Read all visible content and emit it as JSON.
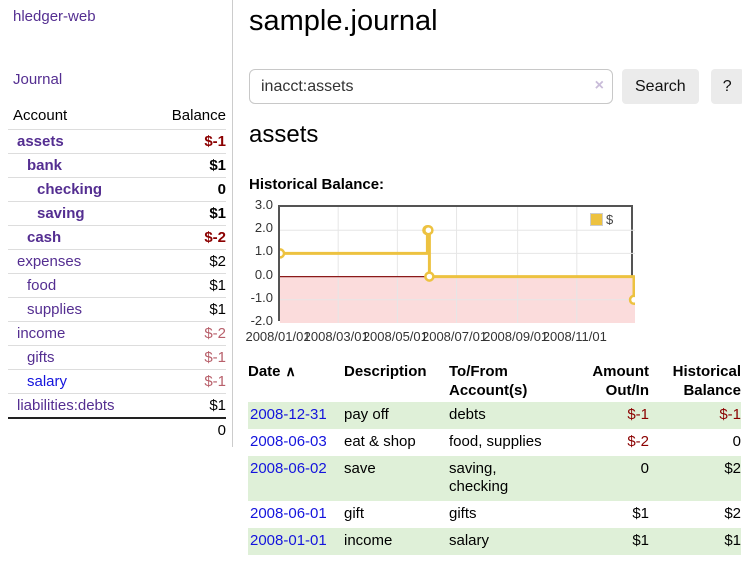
{
  "colors": {
    "link_purple": "#542e91",
    "link_blue": "#1414dd",
    "negative_strong": "#8b0000",
    "negative_soft": "#b8606b",
    "row_highlight_green": "#dff0d8",
    "chart_series_gold": "#edc240",
    "chart_negative_region_pink": "#fbdcdc",
    "chart_zero_line_red": "#8b1a1a"
  },
  "sidebar": {
    "app_title": "hledger-web",
    "journal_link": "Journal",
    "accounts_table": {
      "headers": [
        "Account",
        "Balance"
      ],
      "rows": [
        {
          "account": "assets",
          "indent": 1,
          "bold": true,
          "balance": "$-1",
          "negative": true,
          "unvisited": false
        },
        {
          "account": "bank",
          "indent": 2,
          "bold": true,
          "balance": "$1",
          "negative": false,
          "unvisited": false
        },
        {
          "account": "checking",
          "indent": 3,
          "bold": true,
          "balance": "0",
          "negative": false,
          "unvisited": false
        },
        {
          "account": "saving",
          "indent": 3,
          "bold": true,
          "balance": "$1",
          "negative": false,
          "unvisited": false
        },
        {
          "account": "cash",
          "indent": 2,
          "bold": true,
          "balance": "$-2",
          "negative": true,
          "unvisited": false
        },
        {
          "account": "expenses",
          "indent": 1,
          "bold": false,
          "balance": "$2",
          "negative": false,
          "unvisited": false
        },
        {
          "account": "food",
          "indent": 2,
          "bold": false,
          "balance": "$1",
          "negative": false,
          "unvisited": false
        },
        {
          "account": "supplies",
          "indent": 2,
          "bold": false,
          "balance": "$1",
          "negative": false,
          "unvisited": false
        },
        {
          "account": "income",
          "indent": 1,
          "bold": false,
          "balance": "$-2",
          "negative": true,
          "unvisited": false
        },
        {
          "account": "gifts",
          "indent": 2,
          "bold": false,
          "balance": "$-1",
          "negative": true,
          "unvisited": false
        },
        {
          "account": "salary",
          "indent": 2,
          "bold": false,
          "balance": "$-1",
          "negative": true,
          "unvisited": true
        },
        {
          "account": "liabilities:debts",
          "indent": 1,
          "bold": false,
          "balance": "$1",
          "negative": false,
          "unvisited": false
        }
      ],
      "total": "0"
    }
  },
  "main": {
    "title": "sample.journal",
    "search": {
      "value": "inacct:assets",
      "clear_icon": "×",
      "search_button": "Search",
      "help_button": "?"
    },
    "account_heading": "assets",
    "register_table": {
      "headers": [
        "Date",
        "Description",
        "To/From Account(s)",
        "Amount Out/In",
        "Historical Balance"
      ],
      "sort_icon": "∧",
      "rows": [
        {
          "date": "2008-12-31",
          "description": "pay off",
          "accounts": "debts",
          "amount": "$-1",
          "amount_negative": true,
          "balance": "$-1",
          "balance_negative": true,
          "highlighted": true
        },
        {
          "date": "2008-06-03",
          "description": "eat & shop",
          "accounts": "food, supplies",
          "amount": "$-2",
          "amount_negative": true,
          "balance": "0",
          "balance_negative": false,
          "highlighted": false
        },
        {
          "date": "2008-06-02",
          "description": "save",
          "accounts": "saving, checking",
          "amount": "0",
          "amount_negative": false,
          "balance": "$2",
          "balance_negative": false,
          "highlighted": true
        },
        {
          "date": "2008-06-01",
          "description": "gift",
          "accounts": "gifts",
          "amount": "$1",
          "amount_negative": false,
          "balance": "$2",
          "balance_negative": false,
          "highlighted": false
        },
        {
          "date": "2008-01-01",
          "description": "income",
          "accounts": "salary",
          "amount": "$1",
          "amount_negative": false,
          "balance": "$1",
          "balance_negative": false,
          "highlighted": true
        }
      ]
    }
  },
  "chart_data": {
    "type": "line",
    "title": "Historical Balance:",
    "steps": true,
    "legend": {
      "label": "$",
      "position": "top-right"
    },
    "series": [
      {
        "name": "$",
        "color": "#edc240",
        "points": [
          {
            "date": "2008/01/01",
            "x": 0.0,
            "y": 1
          },
          {
            "date": "2008/06/01",
            "x": 0.4153,
            "y": 2
          },
          {
            "date": "2008/06/02",
            "x": 0.418,
            "y": 2
          },
          {
            "date": "2008/06/03",
            "x": 0.4208,
            "y": 0
          },
          {
            "date": "2008/12/31",
            "x": 0.9973,
            "y": -1
          }
        ]
      }
    ],
    "xticks": [
      {
        "label": "2008/01/01",
        "x": 0.0
      },
      {
        "label": "2008/03/01",
        "x": 0.1639
      },
      {
        "label": "2008/05/01",
        "x": 0.3306
      },
      {
        "label": "2008/07/01",
        "x": 0.4973
      },
      {
        "label": "2008/09/01",
        "x": 0.6694
      },
      {
        "label": "2008/11/01",
        "x": 0.8361
      }
    ],
    "ytick_labels": [
      "3.0",
      "2.0",
      "1.0",
      "0.0",
      "-1.0",
      "-2.0"
    ],
    "ylim": [
      -2.0,
      3.0
    ],
    "grid": true
  }
}
